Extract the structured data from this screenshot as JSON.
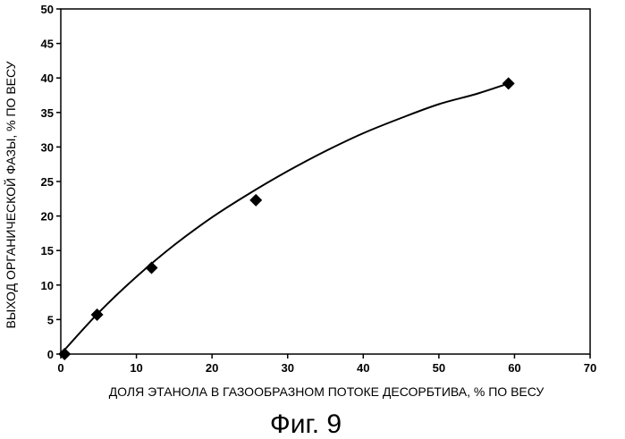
{
  "chart_data": {
    "type": "scatter",
    "xlabel": "ДОЛЯ ЭТАНОЛА В ГАЗООБРАЗНОМ ПОТОКЕ ДЕСОРБТИВА, % ПО ВЕСУ",
    "ylabel": "ВЫХОД ОРГАНИЧЕСКОЙ ФАЗЫ, % ПО ВЕСУ",
    "caption": "Фиг. 9",
    "xlim": [
      0,
      70
    ],
    "ylim": [
      0,
      50
    ],
    "x_ticks": [
      0,
      10,
      20,
      30,
      40,
      50,
      60,
      70
    ],
    "y_ticks": [
      0,
      5,
      10,
      15,
      20,
      25,
      30,
      35,
      40,
      45,
      50
    ],
    "grid": false,
    "legend": "none",
    "marker": "diamond",
    "series": [
      {
        "points": [
          {
            "x": 0.5,
            "y": 0
          },
          {
            "x": 4.8,
            "y": 5.7
          },
          {
            "x": 12,
            "y": 12.5
          },
          {
            "x": 25.8,
            "y": 22.3
          },
          {
            "x": 59.2,
            "y": 39.2
          }
        ]
      }
    ],
    "trendline": {
      "type": "smooth",
      "points": [
        {
          "x": 0,
          "y": 0
        },
        {
          "x": 5,
          "y": 6.0
        },
        {
          "x": 10,
          "y": 11.2
        },
        {
          "x": 15,
          "y": 15.8
        },
        {
          "x": 20,
          "y": 19.8
        },
        {
          "x": 25,
          "y": 23.3
        },
        {
          "x": 30,
          "y": 26.5
        },
        {
          "x": 35,
          "y": 29.4
        },
        {
          "x": 40,
          "y": 32.0
        },
        {
          "x": 45,
          "y": 34.2
        },
        {
          "x": 50,
          "y": 36.2
        },
        {
          "x": 55,
          "y": 37.7
        },
        {
          "x": 59.2,
          "y": 39.2
        }
      ]
    }
  }
}
